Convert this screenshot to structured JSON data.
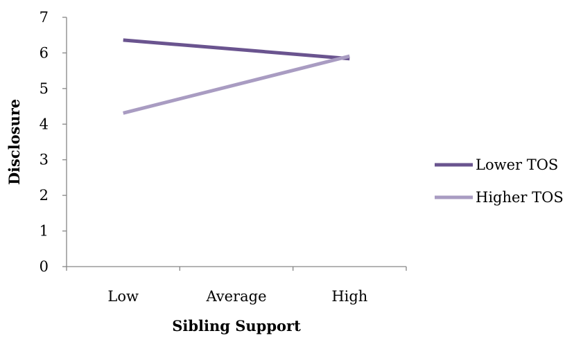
{
  "chart_data": {
    "type": "line",
    "categories": [
      "Low",
      "Average",
      "High"
    ],
    "series": [
      {
        "name": "Lower TOS",
        "values": [
          6.36,
          6.1,
          5.84
        ],
        "color": "#6a548f"
      },
      {
        "name": "Higher TOS",
        "values": [
          4.31,
          5.11,
          5.91
        ],
        "color": "#a99cc2"
      }
    ],
    "xlabel": "Sibling Support",
    "ylabel": "Disclosure",
    "ylim": [
      0,
      7
    ],
    "yticks": [
      "0",
      "1",
      "2",
      "3",
      "4",
      "5",
      "6",
      "7"
    ],
    "grid": false,
    "legend_position": "right"
  }
}
